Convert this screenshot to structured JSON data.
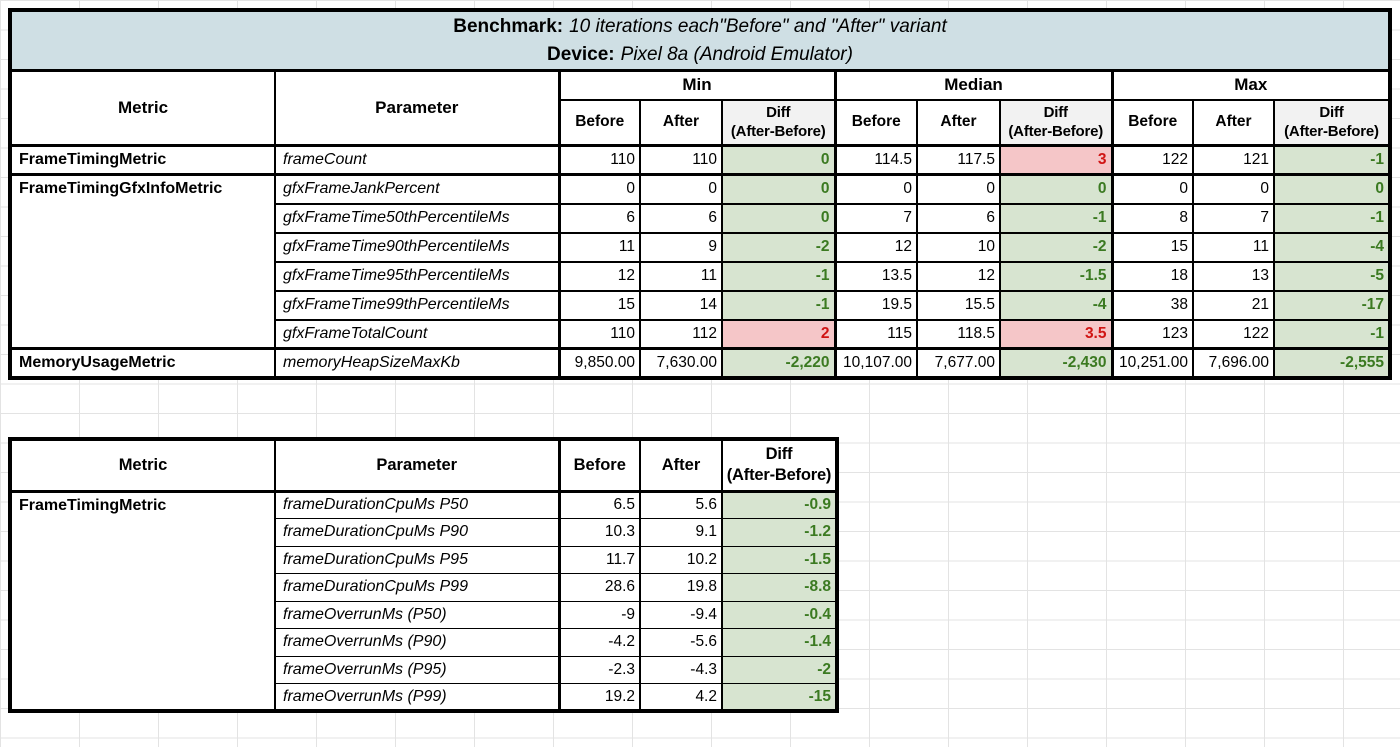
{
  "colors": {
    "title_bg": "#cfdfe4",
    "diff_good_bg": "#d7e4d0",
    "diff_good_text": "#3b7a21",
    "diff_bad_bg": "#f5c6c8",
    "diff_bad_text": "#d01414",
    "diff_header_bg": "#f2f2f2",
    "grid_line": "#e3e3e3",
    "border_color": "#000000"
  },
  "table1": {
    "title": {
      "benchmark_label": "Benchmark:",
      "benchmark_value": "10 iterations each\"Before\" and \"After\" variant",
      "device_label": "Device:",
      "device_value": "Pixel 8a (Android Emulator)"
    },
    "header": {
      "metric": "Metric",
      "parameter": "Parameter",
      "groups": [
        "Min",
        "Median",
        "Max"
      ],
      "before": "Before",
      "after": "After",
      "diff_line1": "Diff",
      "diff_line2": "(After-Before)"
    },
    "rows": [
      {
        "metric": "FrameTimingMetric",
        "metric_rowspan": 1,
        "parameter": "frameCount",
        "groups": [
          {
            "before": "110",
            "after": "110",
            "diff": "0",
            "diff_state": "good"
          },
          {
            "before": "114.5",
            "after": "117.5",
            "diff": "3",
            "diff_state": "bad"
          },
          {
            "before": "122",
            "after": "121",
            "diff": "-1",
            "diff_state": "good"
          }
        ]
      },
      {
        "metric": "FrameTimingGfxInfoMetric",
        "metric_rowspan": 6,
        "parameter": "gfxFrameJankPercent",
        "groups": [
          {
            "before": "0",
            "after": "0",
            "diff": "0",
            "diff_state": "good"
          },
          {
            "before": "0",
            "after": "0",
            "diff": "0",
            "diff_state": "good"
          },
          {
            "before": "0",
            "after": "0",
            "diff": "0",
            "diff_state": "good"
          }
        ]
      },
      {
        "metric": null,
        "parameter": "gfxFrameTime50thPercentileMs",
        "groups": [
          {
            "before": "6",
            "after": "6",
            "diff": "0",
            "diff_state": "good"
          },
          {
            "before": "7",
            "after": "6",
            "diff": "-1",
            "diff_state": "good"
          },
          {
            "before": "8",
            "after": "7",
            "diff": "-1",
            "diff_state": "good"
          }
        ]
      },
      {
        "metric": null,
        "parameter": "gfxFrameTime90thPercentileMs",
        "groups": [
          {
            "before": "11",
            "after": "9",
            "diff": "-2",
            "diff_state": "good"
          },
          {
            "before": "12",
            "after": "10",
            "diff": "-2",
            "diff_state": "good"
          },
          {
            "before": "15",
            "after": "11",
            "diff": "-4",
            "diff_state": "good"
          }
        ]
      },
      {
        "metric": null,
        "parameter": "gfxFrameTime95thPercentileMs",
        "groups": [
          {
            "before": "12",
            "after": "11",
            "diff": "-1",
            "diff_state": "good"
          },
          {
            "before": "13.5",
            "after": "12",
            "diff": "-1.5",
            "diff_state": "good"
          },
          {
            "before": "18",
            "after": "13",
            "diff": "-5",
            "diff_state": "good"
          }
        ]
      },
      {
        "metric": null,
        "parameter": "gfxFrameTime99thPercentileMs",
        "groups": [
          {
            "before": "15",
            "after": "14",
            "diff": "-1",
            "diff_state": "good"
          },
          {
            "before": "19.5",
            "after": "15.5",
            "diff": "-4",
            "diff_state": "good"
          },
          {
            "before": "38",
            "after": "21",
            "diff": "-17",
            "diff_state": "good"
          }
        ]
      },
      {
        "metric": null,
        "parameter": "gfxFrameTotalCount",
        "groups": [
          {
            "before": "110",
            "after": "112",
            "diff": "2",
            "diff_state": "bad"
          },
          {
            "before": "115",
            "after": "118.5",
            "diff": "3.5",
            "diff_state": "bad"
          },
          {
            "before": "123",
            "after": "122",
            "diff": "-1",
            "diff_state": "good"
          }
        ]
      },
      {
        "metric": "MemoryUsageMetric",
        "metric_rowspan": 1,
        "parameter": "memoryHeapSizeMaxKb",
        "groups": [
          {
            "before": "9,850.00",
            "after": "7,630.00",
            "diff": "-2,220",
            "diff_state": "good"
          },
          {
            "before": "10,107.00",
            "after": "7,677.00",
            "diff": "-2,430",
            "diff_state": "good"
          },
          {
            "before": "10,251.00",
            "after": "7,696.00",
            "diff": "-2,555",
            "diff_state": "good"
          }
        ]
      }
    ]
  },
  "table2": {
    "header": {
      "metric": "Metric",
      "parameter": "Parameter",
      "before": "Before",
      "after": "After",
      "diff_line1": "Diff",
      "diff_line2": "(After-Before)"
    },
    "rows": [
      {
        "metric": "FrameTimingMetric",
        "metric_rowspan": 8,
        "parameter": "frameDurationCpuMs P50",
        "before": "6.5",
        "after": "5.6",
        "diff": "-0.9",
        "diff_state": "good"
      },
      {
        "metric": null,
        "parameter": "frameDurationCpuMs P90",
        "before": "10.3",
        "after": "9.1",
        "diff": "-1.2",
        "diff_state": "good"
      },
      {
        "metric": null,
        "parameter": "frameDurationCpuMs P95",
        "before": "11.7",
        "after": "10.2",
        "diff": "-1.5",
        "diff_state": "good"
      },
      {
        "metric": null,
        "parameter": "frameDurationCpuMs P99",
        "before": "28.6",
        "after": "19.8",
        "diff": "-8.8",
        "diff_state": "good"
      },
      {
        "metric": null,
        "parameter": "frameOverrunMs (P50)",
        "before": "-9",
        "after": "-9.4",
        "diff": "-0.4",
        "diff_state": "good"
      },
      {
        "metric": null,
        "parameter": "frameOverrunMs (P90)",
        "before": "-4.2",
        "after": "-5.6",
        "diff": "-1.4",
        "diff_state": "good"
      },
      {
        "metric": null,
        "parameter": "frameOverrunMs (P95)",
        "before": "-2.3",
        "after": "-4.3",
        "diff": "-2",
        "diff_state": "good"
      },
      {
        "metric": null,
        "parameter": "frameOverrunMs (P99)",
        "before": "19.2",
        "after": "4.2",
        "diff": "-15",
        "diff_state": "good"
      }
    ]
  }
}
